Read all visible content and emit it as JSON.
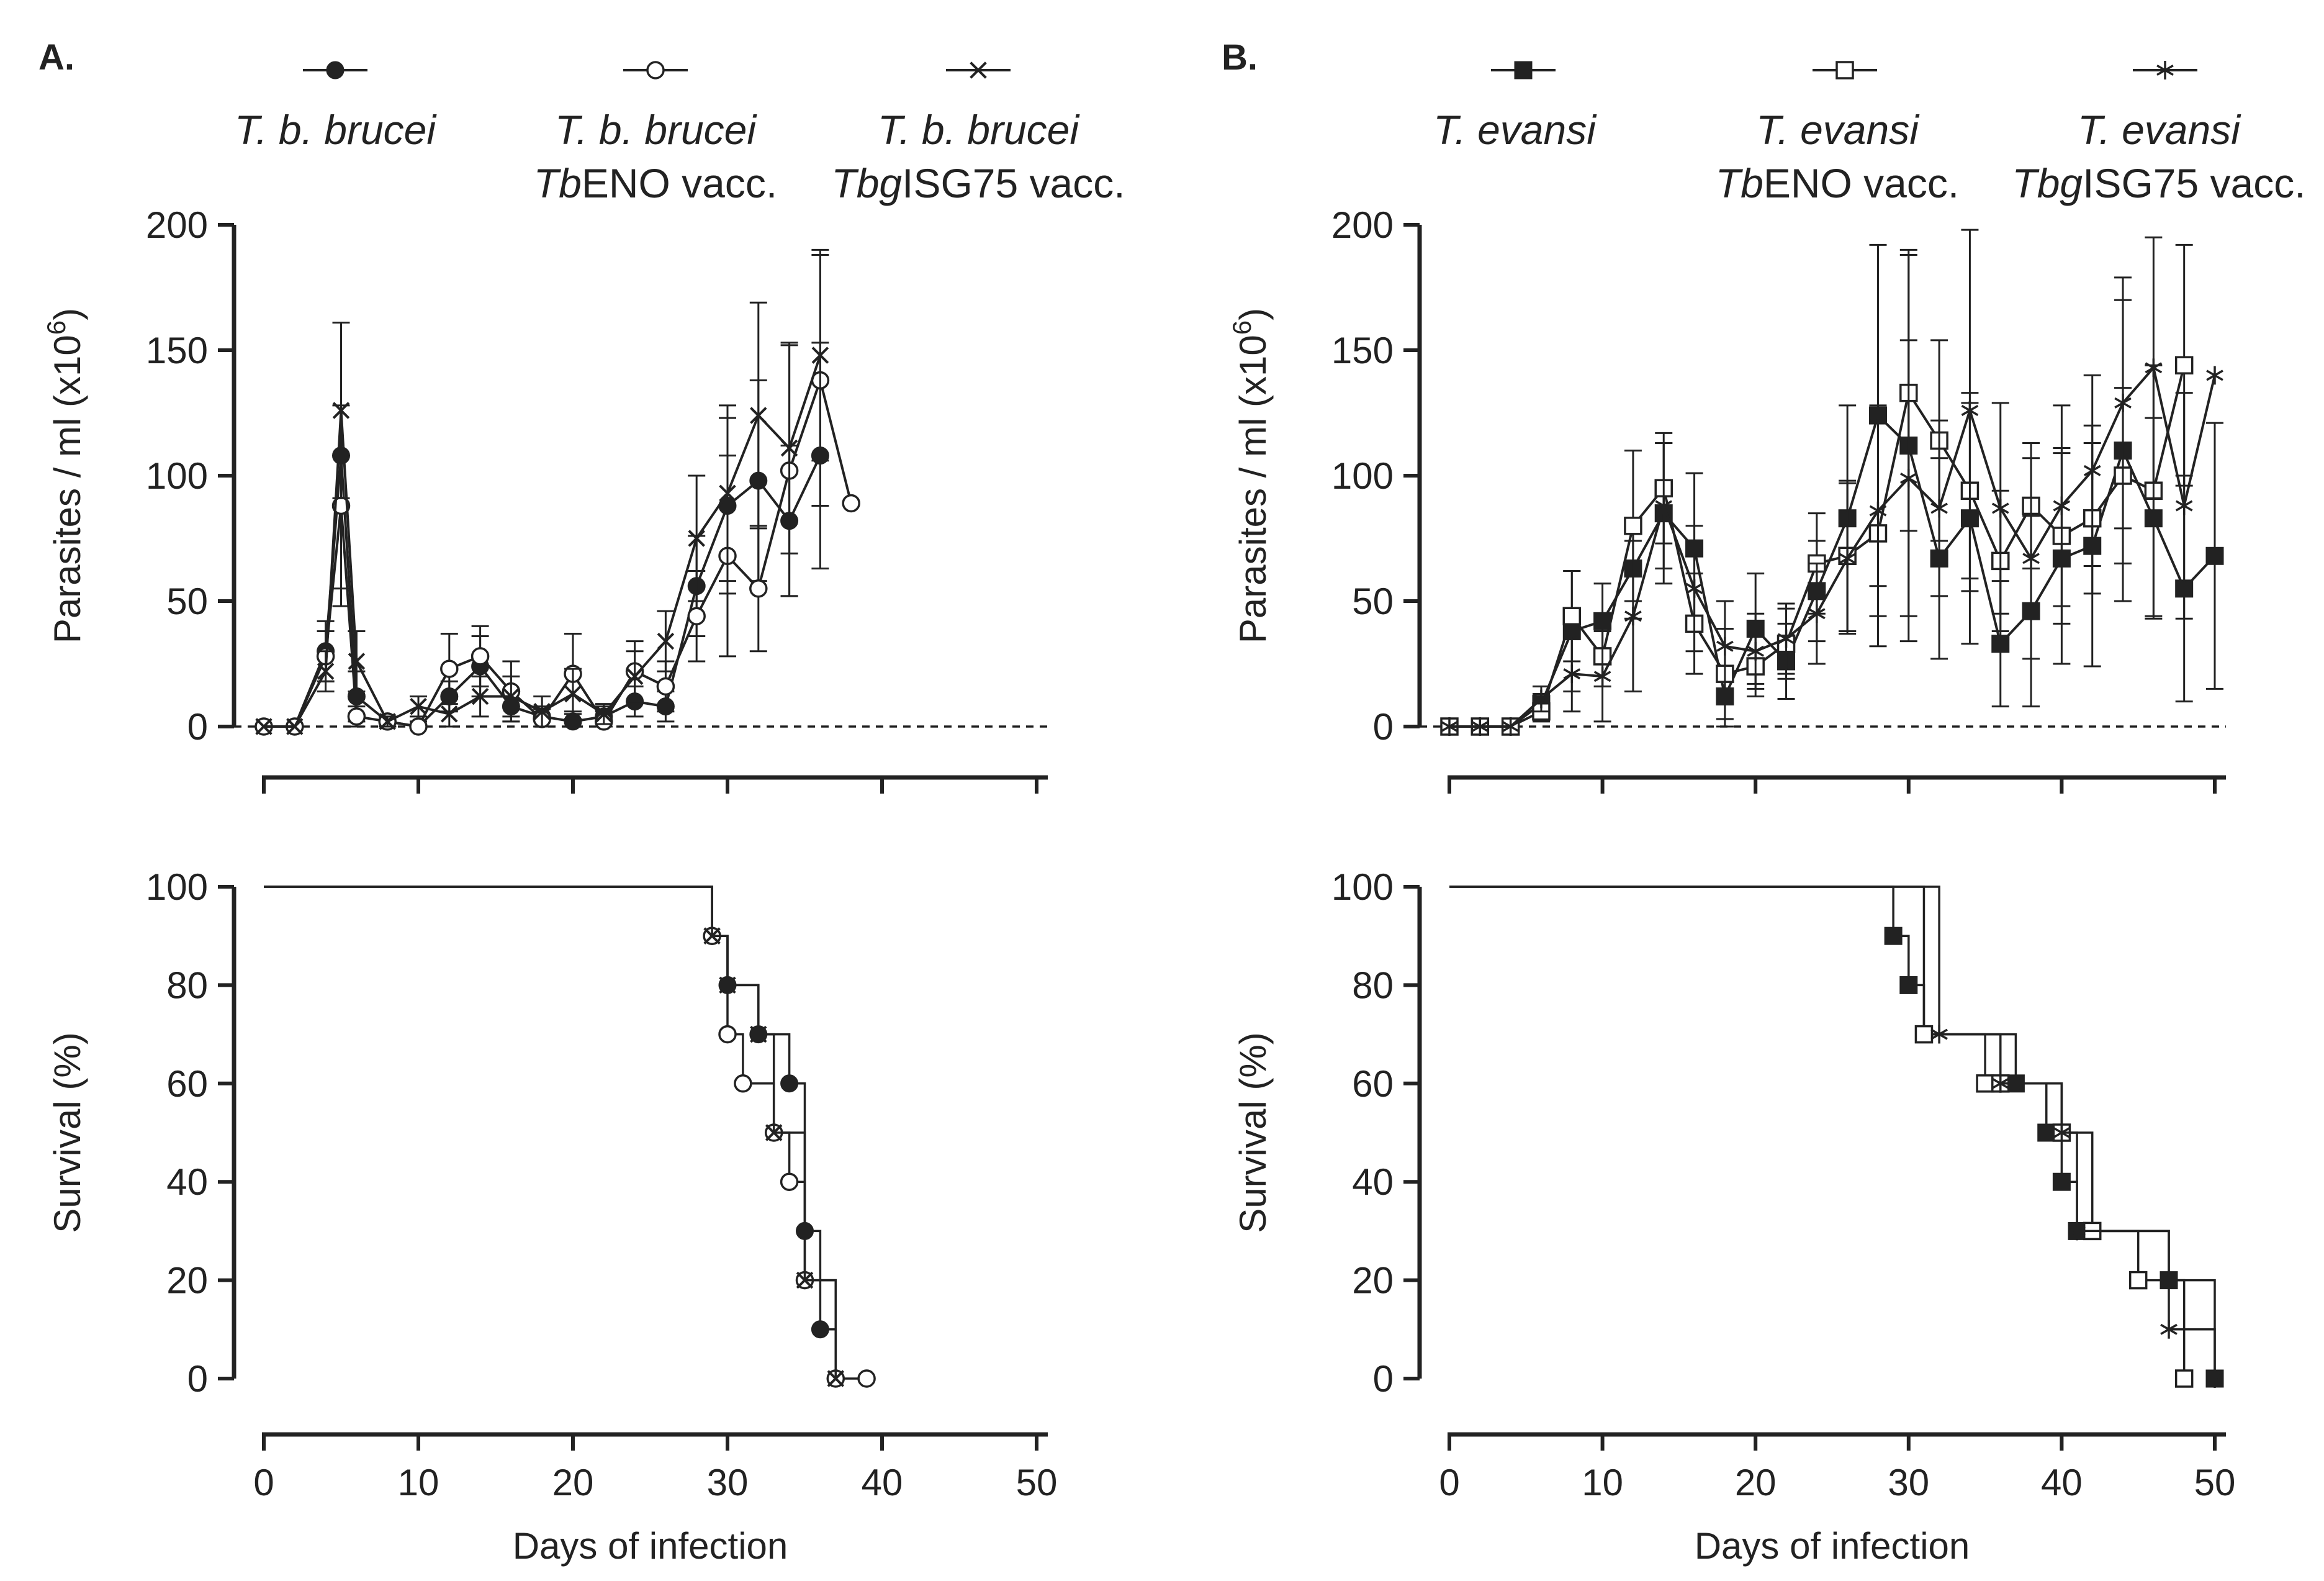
{
  "panels": [
    {
      "label": "A.",
      "legend": [
        {
          "marker": "filled-circle",
          "line1": "T. b. brucei",
          "line2_prefix": "",
          "line2_suffix": ""
        },
        {
          "marker": "open-circle",
          "line1": "T. b. brucei",
          "line2_prefix": "Tb",
          "line2_suffix": "ENO vacc."
        },
        {
          "marker": "cross",
          "line1": "T. b. brucei",
          "line2_prefix": "Tbg",
          "line2_suffix": "ISG75 vacc."
        }
      ]
    },
    {
      "label": "B.",
      "legend": [
        {
          "marker": "filled-square",
          "line1": "T. evansi",
          "line2_prefix": "",
          "line2_suffix": ""
        },
        {
          "marker": "open-square",
          "line1": "T. evansi",
          "line2_prefix": "Tb",
          "line2_suffix": "ENO vacc."
        },
        {
          "marker": "asterisk",
          "line1": "T. evansi",
          "line2_prefix": "Tbg",
          "line2_suffix": "ISG75 vacc."
        }
      ]
    }
  ],
  "chart_data": [
    {
      "id": "A-parasitemia",
      "type": "line",
      "ylabel": "Parasites / ml (x10",
      "ylabel_sup": "6",
      "ylabel_close": ")",
      "ylim": [
        0,
        200
      ],
      "yticks": [
        "0",
        "50",
        "100",
        "150",
        "200"
      ],
      "xlim": [
        0,
        50
      ],
      "xticks": [
        0,
        10,
        20,
        30,
        40,
        50
      ],
      "series": [
        {
          "name": "T. b. brucei",
          "marker": "filled-circle",
          "x": [
            0,
            2,
            4,
            5,
            6,
            8,
            10,
            12,
            14,
            16,
            18,
            20,
            22,
            24,
            26,
            28,
            30,
            32,
            34,
            36
          ],
          "y": [
            0,
            0,
            30,
            108,
            12,
            2,
            0,
            12,
            24,
            8,
            4,
            2,
            4,
            10,
            8,
            56,
            88,
            98,
            82,
            108
          ],
          "err": [
            0,
            0,
            12,
            53,
            10,
            2,
            2,
            6,
            12,
            6,
            4,
            4,
            4,
            6,
            6,
            20,
            35,
            40,
            30,
            45
          ]
        },
        {
          "name": "T. b. brucei TbENO vacc.",
          "marker": "open-circle",
          "x": [
            0,
            2,
            4,
            5,
            6,
            8,
            10,
            12,
            14,
            16,
            18,
            20,
            22,
            24,
            26,
            28,
            30,
            32,
            34,
            36,
            38
          ],
          "y": [
            0,
            0,
            28,
            88,
            4,
            2,
            0,
            23,
            28,
            14,
            3,
            21,
            2,
            22,
            16,
            44,
            68,
            55,
            102,
            138,
            89
          ],
          "err": [
            0,
            0,
            10,
            40,
            4,
            2,
            2,
            14,
            12,
            12,
            4,
            16,
            4,
            12,
            10,
            18,
            40,
            25,
            50,
            50,
            0
          ]
        },
        {
          "name": "T. b. brucei TbgISG75 vacc.",
          "marker": "cross",
          "x": [
            0,
            2,
            4,
            5,
            6,
            8,
            10,
            12,
            14,
            16,
            18,
            20,
            22,
            24,
            26,
            28,
            30,
            32,
            34,
            36
          ],
          "y": [
            0,
            0,
            22,
            126,
            26,
            2,
            8,
            5,
            12,
            12,
            6,
            13,
            5,
            20,
            34,
            75,
            93,
            124,
            111,
            148
          ],
          "err": [
            0,
            0,
            8,
            35,
            12,
            2,
            4,
            6,
            8,
            8,
            6,
            10,
            4,
            10,
            12,
            25,
            35,
            45,
            42,
            42
          ]
        }
      ]
    },
    {
      "id": "A-survival",
      "type": "line",
      "style": "step",
      "ylabel": "Survival (%)",
      "xlabel": "Days of infection",
      "ylim": [
        0,
        100
      ],
      "yticks": [
        "0",
        "20",
        "40",
        "60",
        "80",
        "100"
      ],
      "xlim": [
        0,
        50
      ],
      "xticks": [
        "0",
        "10",
        "20",
        "30",
        "40",
        "50"
      ],
      "series": [
        {
          "name": "T. b. brucei",
          "marker": "filled-circle",
          "x": [
            0,
            29,
            30,
            32,
            34,
            35,
            36,
            37
          ],
          "y": [
            100,
            90,
            80,
            70,
            60,
            30,
            10,
            0
          ]
        },
        {
          "name": "T. b. brucei TbENO vacc.",
          "marker": "open-circle",
          "x": [
            0,
            29,
            30,
            31,
            33,
            34,
            35,
            37,
            39
          ],
          "y": [
            100,
            90,
            70,
            60,
            50,
            40,
            20,
            0,
            0
          ]
        },
        {
          "name": "T. b. brucei TbgISG75 vacc.",
          "marker": "cross",
          "x": [
            0,
            29,
            30,
            32,
            33,
            35,
            37
          ],
          "y": [
            100,
            90,
            80,
            70,
            50,
            20,
            0
          ]
        }
      ]
    },
    {
      "id": "B-parasitemia",
      "type": "line",
      "ylabel": "Parasites / ml (x10",
      "ylabel_sup": "6",
      "ylabel_close": ")",
      "ylim": [
        0,
        200
      ],
      "yticks": [
        "0",
        "50",
        "100",
        "150",
        "200"
      ],
      "xlim": [
        0,
        50
      ],
      "xticks": [
        0,
        10,
        20,
        30,
        40,
        50
      ],
      "series": [
        {
          "name": "T. evansi",
          "marker": "filled-square",
          "x": [
            0,
            2,
            4,
            6,
            8,
            10,
            12,
            14,
            16,
            18,
            20,
            22,
            24,
            26,
            28,
            30,
            32,
            34,
            36,
            38,
            40,
            42,
            44,
            46,
            48,
            50
          ],
          "y": [
            0,
            0,
            0,
            9,
            38,
            42,
            63,
            85,
            71,
            12,
            39,
            26,
            54,
            83,
            124,
            112,
            67,
            83,
            33,
            46,
            67,
            72,
            110,
            83,
            55,
            68
          ],
          "err": [
            0,
            0,
            0,
            4,
            24,
            15,
            20,
            28,
            30,
            12,
            22,
            15,
            20,
            45,
            68,
            78,
            40,
            50,
            25,
            38,
            42,
            48,
            60,
            40,
            45,
            53
          ]
        },
        {
          "name": "T. evansi TbENO vacc.",
          "marker": "open-square",
          "x": [
            0,
            2,
            4,
            6,
            8,
            10,
            12,
            14,
            16,
            18,
            20,
            22,
            24,
            26,
            28,
            30,
            32,
            34,
            36,
            38,
            40,
            42,
            44,
            46,
            48
          ],
          "y": [
            0,
            0,
            0,
            6,
            44,
            28,
            80,
            95,
            41,
            21,
            24,
            33,
            65,
            68,
            77,
            133,
            114,
            94,
            66,
            88,
            76,
            83,
            100,
            94,
            144
          ],
          "err": [
            0,
            0,
            0,
            4,
            18,
            12,
            30,
            22,
            20,
            18,
            12,
            14,
            20,
            30,
            45,
            55,
            40,
            35,
            28,
            25,
            35,
            30,
            35,
            50,
            48
          ]
        },
        {
          "name": "T. evansi TbgISG75 vacc.",
          "marker": "asterisk",
          "x": [
            0,
            2,
            4,
            6,
            8,
            10,
            12,
            14,
            16,
            18,
            20,
            22,
            24,
            26,
            28,
            30,
            32,
            34,
            36,
            38,
            40,
            42,
            44,
            46,
            48,
            50
          ],
          "y": [
            0,
            0,
            0,
            11,
            21,
            20,
            44,
            88,
            55,
            32,
            30,
            35,
            45,
            67,
            86,
            99,
            87,
            126,
            87,
            67,
            88,
            102,
            129,
            143,
            88,
            140
          ],
          "err": [
            0,
            0,
            0,
            5,
            15,
            18,
            30,
            25,
            25,
            18,
            15,
            14,
            20,
            30,
            42,
            55,
            35,
            72,
            42,
            40,
            40,
            38,
            50,
            52,
            45,
            0
          ]
        }
      ]
    },
    {
      "id": "B-survival",
      "type": "line",
      "style": "step",
      "ylabel": "Survival (%)",
      "xlabel": "Days of infection",
      "ylim": [
        0,
        100
      ],
      "yticks": [
        "0",
        "20",
        "40",
        "60",
        "80",
        "100"
      ],
      "xlim": [
        0,
        50
      ],
      "xticks": [
        "0",
        "10",
        "20",
        "30",
        "40",
        "50"
      ],
      "series": [
        {
          "name": "T. evansi",
          "marker": "filled-square",
          "x": [
            0,
            29,
            30,
            31,
            37,
            39,
            40,
            41,
            47,
            50
          ],
          "y": [
            100,
            90,
            80,
            70,
            60,
            50,
            40,
            30,
            20,
            0
          ]
        },
        {
          "name": "T. evansi TbENO vacc.",
          "marker": "open-square",
          "x": [
            0,
            31,
            35,
            36,
            40,
            42,
            45,
            48
          ],
          "y": [
            100,
            70,
            60,
            60,
            50,
            30,
            20,
            0
          ]
        },
        {
          "name": "T. evansi TbgISG75 vacc.",
          "marker": "asterisk",
          "x": [
            0,
            32,
            36,
            40,
            41,
            47,
            50
          ],
          "y": [
            100,
            70,
            60,
            50,
            30,
            10,
            0
          ]
        }
      ]
    }
  ]
}
